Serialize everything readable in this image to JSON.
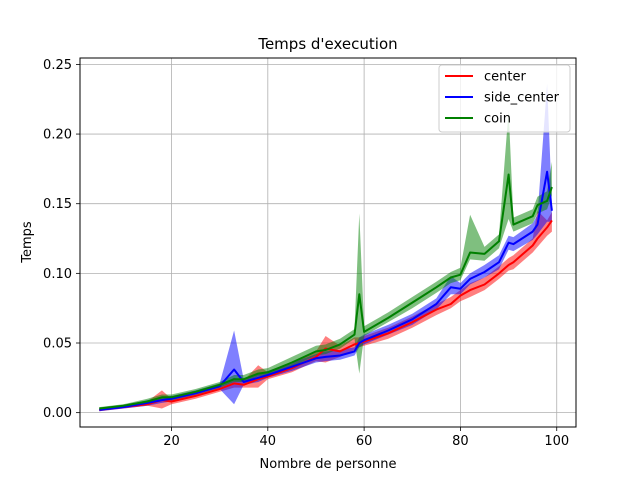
{
  "chart_data": {
    "type": "line",
    "title": "Temps d'execution",
    "xlabel": "Nombre de personne",
    "ylabel": "Temps",
    "xlim": [
      1,
      104
    ],
    "ylim": [
      -0.0103,
      0.2546
    ],
    "xticks": [
      20,
      40,
      60,
      80,
      100
    ],
    "yticks": [
      0.0,
      0.05,
      0.1,
      0.15,
      0.2,
      0.25
    ],
    "ytick_labels": [
      "0.00",
      "0.05",
      "0.10",
      "0.15",
      "0.20",
      "0.25"
    ],
    "grid": true,
    "legend_position": "top-right",
    "x": [
      5,
      10,
      15,
      18,
      20,
      25,
      30,
      33,
      35,
      38,
      40,
      45,
      50,
      52,
      55,
      58,
      59,
      60,
      65,
      70,
      75,
      78,
      80,
      82,
      85,
      88,
      90,
      91,
      95,
      96,
      98,
      99
    ],
    "series": [
      {
        "name": "center",
        "color": "#ff0000",
        "values": [
          0.002,
          0.004,
          0.006,
          0.009,
          0.008,
          0.012,
          0.017,
          0.021,
          0.02,
          0.024,
          0.026,
          0.032,
          0.04,
          0.046,
          0.044,
          0.049,
          0.05,
          0.051,
          0.057,
          0.065,
          0.074,
          0.078,
          0.084,
          0.088,
          0.092,
          0.1,
          0.106,
          0.108,
          0.12,
          0.125,
          0.133,
          0.138
        ],
        "lower": [
          0.001,
          0.003,
          0.005,
          0.003,
          0.006,
          0.01,
          0.015,
          0.018,
          0.018,
          0.018,
          0.024,
          0.029,
          0.037,
          0.036,
          0.04,
          0.045,
          0.047,
          0.048,
          0.053,
          0.061,
          0.07,
          0.075,
          0.08,
          0.083,
          0.088,
          0.096,
          0.102,
          0.103,
          0.115,
          0.119,
          0.127,
          0.13
        ],
        "upper": [
          0.003,
          0.005,
          0.008,
          0.016,
          0.01,
          0.014,
          0.019,
          0.025,
          0.023,
          0.034,
          0.029,
          0.035,
          0.044,
          0.055,
          0.048,
          0.054,
          0.054,
          0.055,
          0.061,
          0.069,
          0.078,
          0.083,
          0.088,
          0.093,
          0.097,
          0.105,
          0.111,
          0.113,
          0.125,
          0.145,
          0.138,
          0.144
        ]
      },
      {
        "name": "side_center",
        "color": "#0000ff",
        "values": [
          0.002,
          0.004,
          0.007,
          0.009,
          0.01,
          0.014,
          0.019,
          0.031,
          0.022,
          0.025,
          0.027,
          0.033,
          0.039,
          0.04,
          0.041,
          0.044,
          0.05,
          0.052,
          0.059,
          0.067,
          0.078,
          0.09,
          0.089,
          0.096,
          0.101,
          0.108,
          0.122,
          0.121,
          0.13,
          0.135,
          0.173,
          0.145
        ],
        "lower": [
          0.001,
          0.003,
          0.005,
          0.007,
          0.008,
          0.012,
          0.017,
          0.006,
          0.02,
          0.022,
          0.025,
          0.03,
          0.036,
          0.037,
          0.038,
          0.041,
          0.047,
          0.049,
          0.056,
          0.063,
          0.074,
          0.085,
          0.085,
          0.092,
          0.097,
          0.103,
          0.117,
          0.116,
          0.124,
          0.128,
          0.137,
          0.137
        ],
        "upper": [
          0.003,
          0.005,
          0.009,
          0.011,
          0.012,
          0.016,
          0.021,
          0.059,
          0.024,
          0.028,
          0.03,
          0.036,
          0.042,
          0.044,
          0.045,
          0.047,
          0.054,
          0.056,
          0.063,
          0.071,
          0.082,
          0.098,
          0.093,
          0.1,
          0.106,
          0.113,
          0.127,
          0.126,
          0.136,
          0.142,
          0.236,
          0.152
        ]
      },
      {
        "name": "coin",
        "color": "#008000",
        "values": [
          0.003,
          0.005,
          0.008,
          0.011,
          0.011,
          0.015,
          0.02,
          0.024,
          0.024,
          0.028,
          0.029,
          0.036,
          0.044,
          0.045,
          0.049,
          0.056,
          0.085,
          0.058,
          0.068,
          0.079,
          0.09,
          0.097,
          0.099,
          0.115,
          0.114,
          0.123,
          0.171,
          0.135,
          0.141,
          0.149,
          0.152,
          0.162
        ],
        "lower": [
          0.002,
          0.004,
          0.007,
          0.009,
          0.009,
          0.013,
          0.018,
          0.022,
          0.022,
          0.026,
          0.027,
          0.033,
          0.041,
          0.042,
          0.046,
          0.053,
          0.028,
          0.055,
          0.065,
          0.075,
          0.086,
          0.093,
          0.095,
          0.11,
          0.109,
          0.118,
          0.139,
          0.13,
          0.136,
          0.143,
          0.146,
          0.156
        ],
        "upper": [
          0.004,
          0.006,
          0.01,
          0.013,
          0.013,
          0.017,
          0.022,
          0.027,
          0.027,
          0.031,
          0.032,
          0.04,
          0.048,
          0.049,
          0.053,
          0.06,
          0.143,
          0.062,
          0.072,
          0.083,
          0.094,
          0.101,
          0.104,
          0.142,
          0.119,
          0.128,
          0.217,
          0.14,
          0.146,
          0.155,
          0.159,
          0.18
        ]
      }
    ]
  }
}
